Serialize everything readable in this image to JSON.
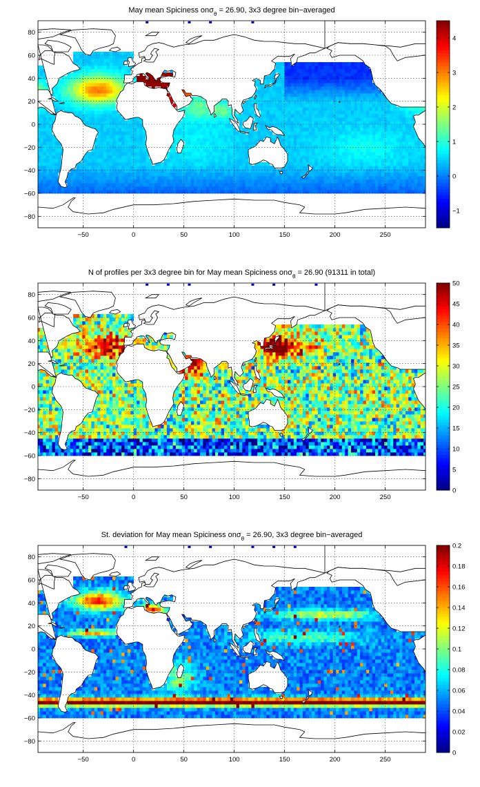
{
  "chart_data": [
    {
      "type": "heatmap",
      "title_prefix": "May mean Spiciness on",
      "title_sigma": "σ",
      "title_sub": "θ",
      "title_suffix": " = 26.90, 3x3 degree bin−averaged",
      "xlim": [
        -95,
        290
      ],
      "ylim": [
        -90,
        90
      ],
      "xticks": [
        -50,
        0,
        50,
        100,
        150,
        200,
        250
      ],
      "yticks": [
        -80,
        -60,
        -40,
        -20,
        0,
        20,
        40,
        60,
        80
      ],
      "colorbar": {
        "range": [
          -1.5,
          4.5
        ],
        "ticks": [
          -1,
          0,
          1,
          2,
          3,
          4
        ],
        "colormap": "jet"
      },
      "grid": true
    },
    {
      "type": "heatmap",
      "title_prefix": "N of profiles per 3x3 degree bin for May mean Spiciness on",
      "title_sigma": "σ",
      "title_sub": "θ",
      "title_suffix": " = 26.90 (91311 in total)",
      "xlim": [
        -95,
        290
      ],
      "ylim": [
        -90,
        90
      ],
      "xticks": [
        -50,
        0,
        50,
        100,
        150,
        200,
        250
      ],
      "yticks": [
        -80,
        -60,
        -40,
        -20,
        0,
        20,
        40,
        60,
        80
      ],
      "colorbar": {
        "range": [
          0,
          50
        ],
        "ticks": [
          0,
          5,
          10,
          15,
          20,
          25,
          30,
          35,
          40,
          45,
          50
        ],
        "colormap": "jet"
      },
      "grid": true
    },
    {
      "type": "heatmap",
      "title_prefix": "St. deviation for May mean Spiciness on",
      "title_sigma": "σ",
      "title_sub": "θ",
      "title_suffix": " = 26.90, 3x3 degree bin−averaged",
      "xlim": [
        -95,
        290
      ],
      "ylim": [
        -90,
        90
      ],
      "xticks": [
        -50,
        0,
        50,
        100,
        150,
        200,
        250
      ],
      "yticks": [
        -80,
        -60,
        -40,
        -20,
        0,
        20,
        40,
        60,
        80
      ],
      "colorbar": {
        "range": [
          0,
          0.2
        ],
        "ticks": [
          0,
          0.02,
          0.04,
          0.06,
          0.08,
          0.1,
          0.12,
          0.14,
          0.16,
          0.18,
          0.2
        ],
        "colormap": "jet"
      },
      "grid": true
    }
  ]
}
